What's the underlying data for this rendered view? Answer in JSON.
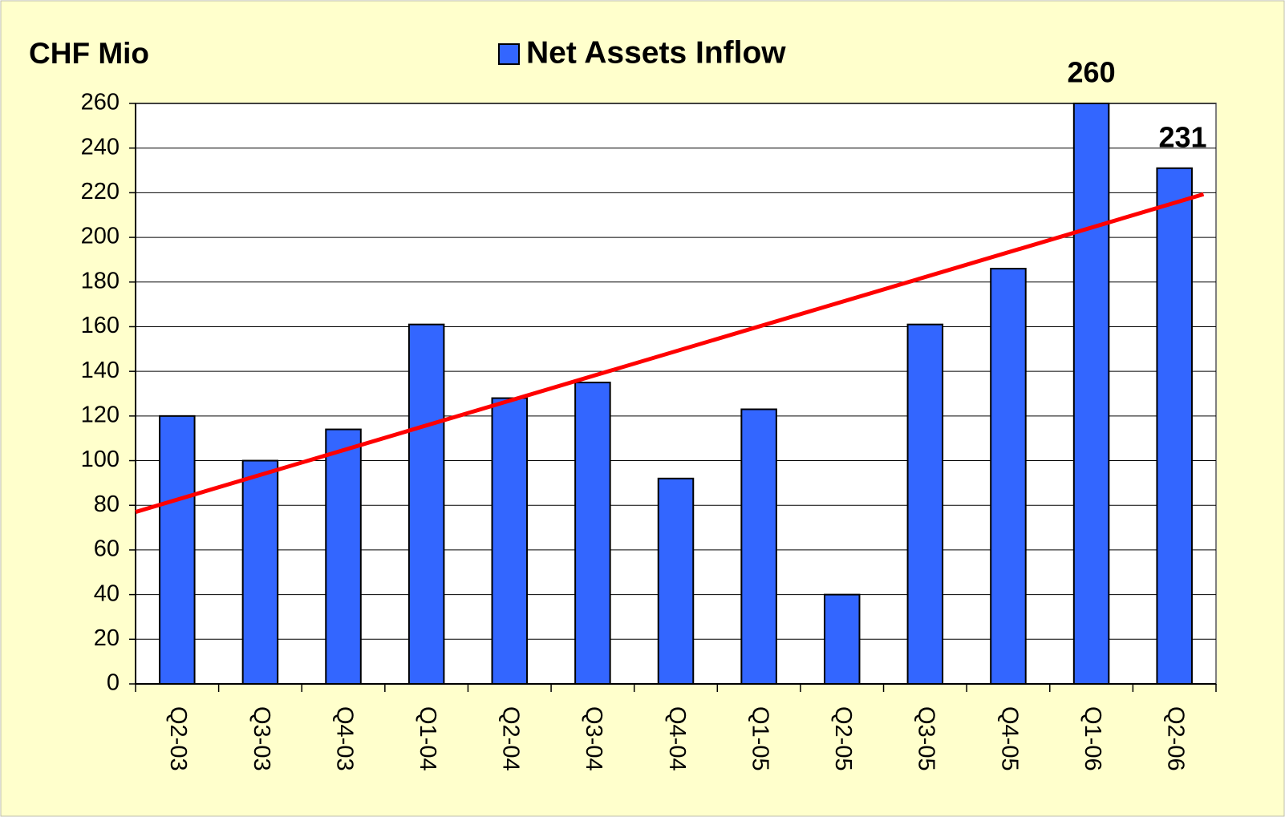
{
  "chart_data": {
    "type": "bar",
    "y_axis_label": "CHF Mio",
    "categories": [
      "Q2-03",
      "Q3-03",
      "Q4-03",
      "Q1-04",
      "Q2-04",
      "Q3-04",
      "Q4-04",
      "Q1-05",
      "Q2-05",
      "Q3-05",
      "Q4-05",
      "Q1-06",
      "Q2-06"
    ],
    "series": [
      {
        "name": "Net Assets Inflow",
        "color": "#3366ff",
        "values": [
          120,
          100,
          114,
          161,
          128,
          135,
          92,
          123,
          40,
          161,
          186,
          260,
          231
        ],
        "data_labels": [
          false,
          false,
          false,
          false,
          false,
          false,
          false,
          false,
          false,
          false,
          false,
          true,
          true
        ]
      }
    ],
    "trendline": {
      "color": "#ff0000",
      "values": [
        77,
        221
      ]
    },
    "ylim": [
      0,
      260
    ],
    "yticks": [
      0,
      20,
      40,
      60,
      80,
      100,
      120,
      140,
      160,
      180,
      200,
      220,
      240,
      260
    ],
    "grid": true
  }
}
